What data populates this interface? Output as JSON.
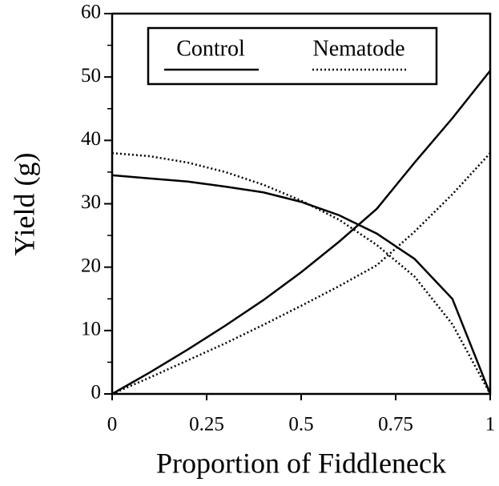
{
  "chart_data": {
    "type": "line",
    "xlabel": "Proportion of Fiddleneck",
    "ylabel": "Yield (g)",
    "x": [
      0,
      0.1,
      0.2,
      0.3,
      0.4,
      0.5,
      0.6,
      0.7,
      0.8,
      0.9,
      1
    ],
    "series": [
      {
        "name": "Control",
        "color": "#000000",
        "dash": "solid",
        "lines": [
          [
            0,
            3.4,
            7,
            10.8,
            14.8,
            19.2,
            24,
            29.2,
            36.5,
            43.5,
            51
          ],
          [
            34.5,
            34,
            33.5,
            32.7,
            31.8,
            30.3,
            28.2,
            25.3,
            21.3,
            15,
            0
          ]
        ]
      },
      {
        "name": "Nematode",
        "color": "#000000",
        "dash": "dotted",
        "lines": [
          [
            0,
            2.6,
            5.3,
            8,
            10.9,
            13.9,
            17,
            20.3,
            25.6,
            31.5,
            38
          ],
          [
            38,
            37.5,
            36.5,
            35,
            33,
            30.5,
            27.5,
            23.5,
            18.5,
            11,
            0
          ]
        ]
      }
    ],
    "xlim": [
      0,
      1
    ],
    "xticks": [
      0,
      0.25,
      0.5,
      0.75,
      1
    ],
    "ylim": [
      0,
      60
    ],
    "yticks": [
      0,
      10,
      20,
      30,
      40,
      50,
      60
    ],
    "legend": "top"
  }
}
